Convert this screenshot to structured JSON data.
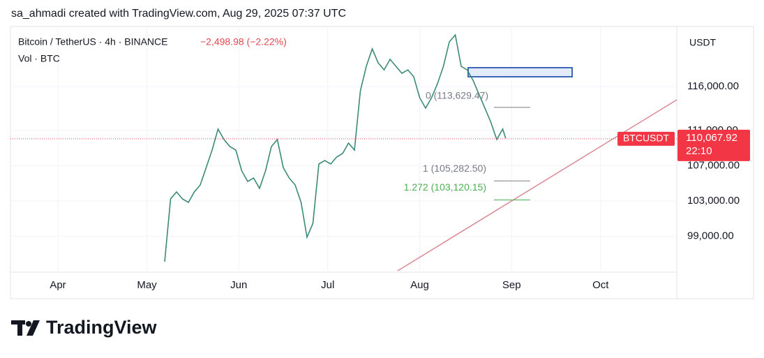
{
  "header": "sa_ahmadi created with TradingView.com, Aug 29, 2025 07:37 UTC",
  "logo": "TradingView",
  "chart_data": {
    "type": "line",
    "title": "Bitcoin / TetherUS · 4h · BINANCE",
    "change": "−2,498.98 (−2.22%)",
    "subtitle": "Vol · BTC",
    "currency": "USDT",
    "symbol": "BTCUSDT",
    "last_price": {
      "value": 110067.92,
      "label": "110,067.92"
    },
    "countdown": "22:10",
    "color": "#3b8a78",
    "x": [
      36,
      38,
      40,
      42,
      44,
      46,
      48,
      50,
      52,
      54,
      56,
      58,
      60,
      62,
      64,
      66,
      68,
      70,
      72,
      74,
      76,
      78,
      80,
      82,
      84,
      86,
      88,
      90,
      92,
      94,
      96,
      98,
      100,
      102,
      104,
      106,
      108,
      110,
      112,
      114,
      116,
      118,
      120,
      122,
      124,
      126,
      128,
      130,
      132,
      134,
      136,
      138,
      140,
      142,
      144,
      146,
      148,
      150,
      151
    ],
    "values": [
      96100,
      103240,
      104030,
      103240,
      102840,
      104030,
      104820,
      106800,
      108790,
      111170,
      109980,
      109180,
      108790,
      106410,
      105220,
      105610,
      104430,
      106410,
      109180,
      109980,
      106800,
      105610,
      104820,
      102840,
      98880,
      100460,
      107200,
      107600,
      107200,
      107990,
      108390,
      109580,
      108790,
      115520,
      118300,
      120280,
      118700,
      117900,
      119090,
      118300,
      117500,
      117900,
      117110,
      114730,
      113540,
      114730,
      116320,
      118300,
      121070,
      121870,
      118300,
      117900,
      116710,
      115130,
      113540,
      111950,
      109980,
      111170,
      110130
    ],
    "xlim": [
      -16,
      208.7
    ],
    "xticks": [
      {
        "value": 0,
        "label": "Apr"
      },
      {
        "value": 30,
        "label": "May"
      },
      {
        "value": 61,
        "label": "Jun"
      },
      {
        "value": 91,
        "label": "Jul"
      },
      {
        "value": 122,
        "label": "Aug"
      },
      {
        "value": 153,
        "label": "Sep"
      },
      {
        "value": 183,
        "label": "Oct"
      }
    ],
    "ylim": [
      95070,
      122820
    ],
    "yticks": [
      {
        "value": 99000,
        "label": "99,000.00"
      },
      {
        "value": 103000,
        "label": "103,000.00"
      },
      {
        "value": 107000,
        "label": "107,000.00"
      },
      {
        "value": 111000,
        "label": "111,000.00"
      },
      {
        "value": 116000,
        "label": "116,000.00"
      }
    ],
    "fib_levels": [
      {
        "value": 113629.47,
        "label": "0 (113,629.47)"
      },
      {
        "value": 105282.5,
        "label": "1 (105,282.50)"
      },
      {
        "value": 103120.15,
        "label": "1.272 (103,120.15)"
      }
    ]
  }
}
